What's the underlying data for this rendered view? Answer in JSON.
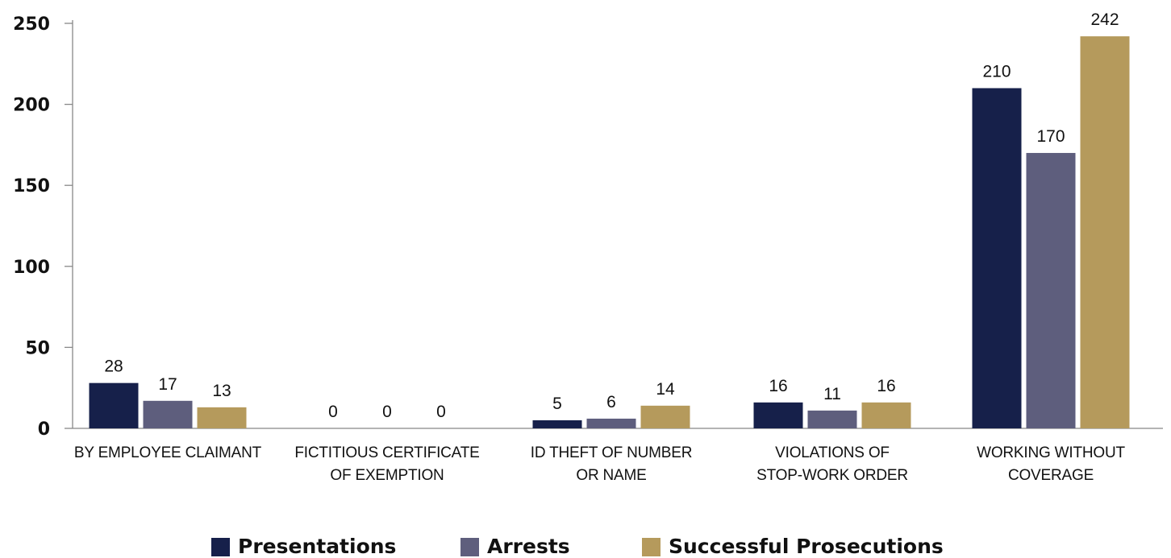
{
  "chart_data": {
    "type": "bar",
    "categories": [
      [
        "BY EMPLOYEE CLAIMANT"
      ],
      [
        "FICTITIOUS CERTIFICATE",
        "OF EXEMPTION"
      ],
      [
        "ID THEFT OF NUMBER",
        "OR NAME"
      ],
      [
        "VIOLATIONS OF",
        "STOP-WORK ORDER"
      ],
      [
        "WORKING WITHOUT",
        "COVERAGE"
      ]
    ],
    "series": [
      {
        "name": "Presentations",
        "color": "#16204a",
        "values": [
          28,
          0,
          5,
          16,
          210
        ]
      },
      {
        "name": "Arrests",
        "color": "#5e5e7d",
        "values": [
          17,
          0,
          6,
          11,
          170
        ]
      },
      {
        "name": "Successful Prosecutions",
        "color": "#b59a5c",
        "values": [
          13,
          0,
          14,
          16,
          242
        ]
      }
    ],
    "yticks": [
      "0",
      "50",
      "100",
      "150",
      "200",
      "250"
    ],
    "ylim": [
      0,
      250
    ],
    "legend_position": "bottom-center",
    "grid": false
  }
}
